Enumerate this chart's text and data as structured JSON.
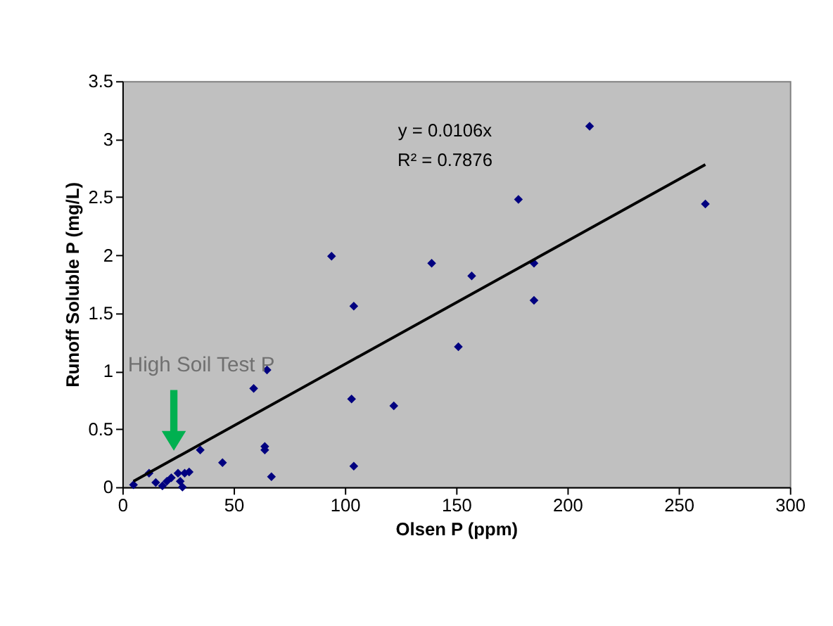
{
  "chart_data": {
    "type": "scatter",
    "xlabel": "Olsen P (ppm)",
    "ylabel": "Runoff Soluble P (mg/L)",
    "xlim": [
      0,
      300
    ],
    "xticks": [
      0,
      50,
      100,
      150,
      200,
      250,
      300
    ],
    "ylim": [
      0,
      3.5
    ],
    "yticks": [
      0,
      0.5,
      1,
      1.5,
      2,
      2.5,
      3,
      3.5
    ],
    "grid": false,
    "series": [
      {
        "marker": "diamond",
        "color": "#000080",
        "x": [
          5,
          12,
          15,
          18,
          20,
          22,
          25,
          26,
          27,
          28,
          30,
          35,
          45,
          59,
          64,
          64,
          65,
          67,
          94,
          103,
          104,
          104,
          122,
          139,
          151,
          157,
          178,
          185,
          185,
          210,
          262
        ],
        "values": [
          0.02,
          0.12,
          0.04,
          0.01,
          0.05,
          0.08,
          0.12,
          0.05,
          0.0,
          0.12,
          0.13,
          0.32,
          0.21,
          0.85,
          0.35,
          0.32,
          1.01,
          0.09,
          1.99,
          0.76,
          0.18,
          1.56,
          0.7,
          1.93,
          1.21,
          1.82,
          2.48,
          1.93,
          1.61,
          3.11,
          2.44
        ]
      },
      {
        "type": "line",
        "marker": "none",
        "line_style": "solid",
        "color": "#000000",
        "x": [
          5,
          262
        ],
        "values": [
          0.05,
          2.78
        ]
      }
    ],
    "annotations": [
      "y = 0.0106x",
      "R² = 0.7876",
      "High Soil Test P"
    ]
  }
}
